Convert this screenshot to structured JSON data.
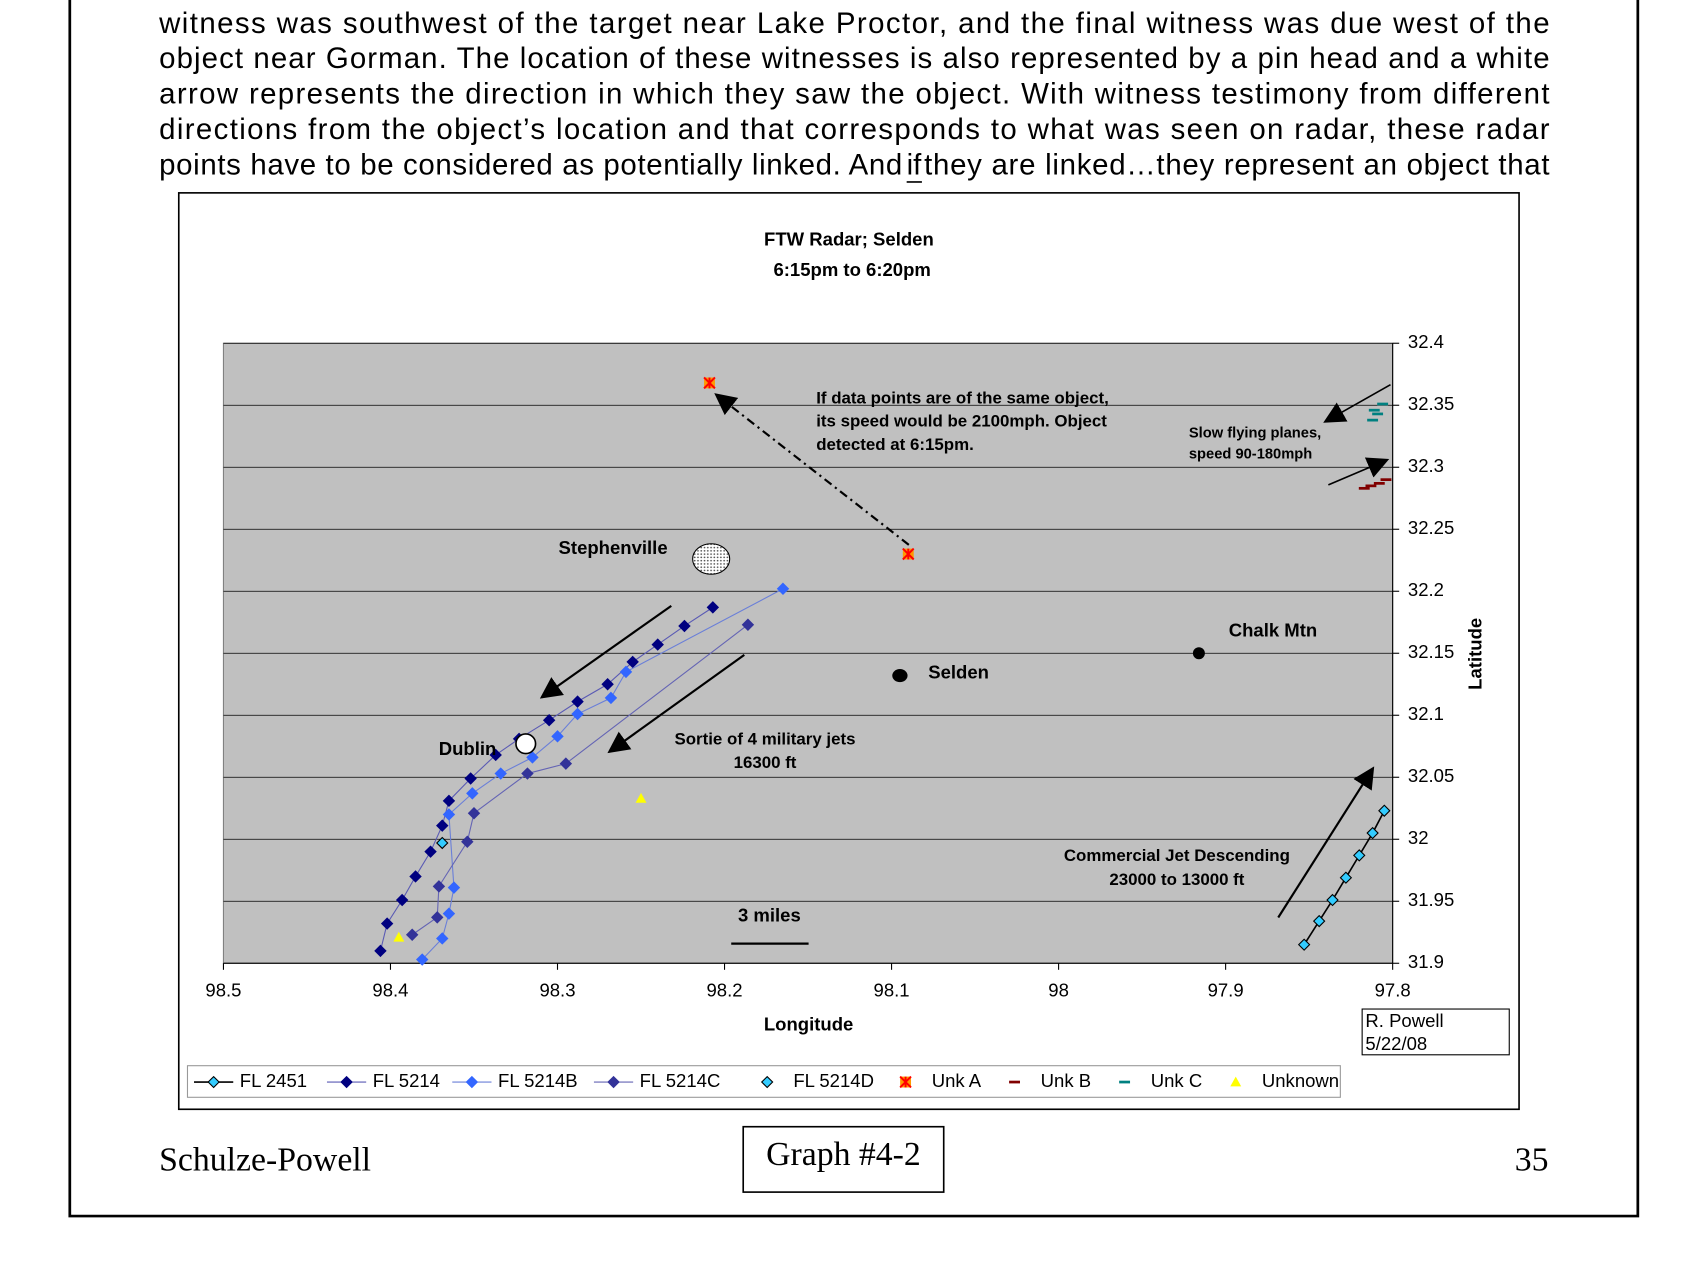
{
  "text": {
    "lines": [
      "witness was southwest of the target near Lake Proctor, and the final witness was due west of the",
      "object near Gorman. The location of these witnesses is also represented by a pin head and a white",
      "arrow represents the direction in which they saw the object. With witness testimony from different",
      "directions from the object’s location and that corresponds to what was seen on radar, these radar"
    ],
    "last_line": [
      "points have to be considered as potentially linked. And ",
      "if",
      " they are linked…they represent an object that"
    ]
  },
  "chart_data": {
    "type": "scatter",
    "title": [
      "FTW Radar; Selden",
      "6:15pm to 6:20pm"
    ],
    "x_label": "Longitude",
    "y_label": "Latitude",
    "xlim": [
      98.5,
      97.8
    ],
    "xticks": [
      98.5,
      98.4,
      98.3,
      98.2,
      98.1,
      98,
      97.9,
      97.8
    ],
    "ylim": [
      31.9,
      32.4
    ],
    "yticks": [
      31.9,
      31.95,
      32,
      32.05,
      32.1,
      32.15,
      32.2,
      32.25,
      32.3,
      32.35,
      32.4
    ],
    "grid": true,
    "series": [
      {
        "name": "FL 2451",
        "color": "#33ccff",
        "line_color": "#000000",
        "marker": "diamond",
        "line": true,
        "x": [
          97.853,
          97.844,
          97.836,
          97.828,
          97.82,
          97.812,
          97.805
        ],
        "values": [
          31.915,
          31.934,
          31.951,
          31.969,
          31.987,
          32.005,
          32.023
        ]
      },
      {
        "name": "FL 5214",
        "color": "#000080",
        "line_color": "#5a5ab4",
        "marker": "diamond",
        "line": true,
        "x": [
          98.406,
          98.402,
          98.393,
          98.385,
          98.376,
          98.369,
          98.365,
          98.352,
          98.337,
          98.323,
          98.305,
          98.288,
          98.27,
          98.255,
          98.24,
          98.224,
          98.207
        ],
        "values": [
          31.91,
          31.932,
          31.951,
          31.97,
          31.99,
          32.011,
          32.031,
          32.049,
          32.068,
          32.081,
          32.096,
          32.111,
          32.125,
          32.143,
          32.157,
          32.172,
          32.187
        ]
      },
      {
        "name": "FL 5214B",
        "color": "#3366ff",
        "line_color": "#6a7fd8",
        "marker": "diamond",
        "line": true,
        "x": [
          98.381,
          98.369,
          98.365,
          98.362,
          98.365,
          98.351,
          98.334,
          98.315,
          98.3,
          98.288,
          98.268,
          98.259,
          98.165
        ],
        "values": [
          31.903,
          31.92,
          31.94,
          31.961,
          32.02,
          32.037,
          32.053,
          32.066,
          32.083,
          32.101,
          32.114,
          32.135,
          32.202
        ]
      },
      {
        "name": "FL 5214C",
        "color": "#333399",
        "line_color": "#6464b4",
        "marker": "diamond",
        "line": true,
        "x": [
          98.387,
          98.372,
          98.371,
          98.354,
          98.35,
          98.318,
          98.295,
          98.186
        ],
        "values": [
          31.923,
          31.937,
          31.962,
          31.998,
          32.021,
          32.053,
          32.061,
          32.173
        ]
      },
      {
        "name": "FL 5214D",
        "color": "#33ccff",
        "marker": "diamond-dark",
        "line": false,
        "x": [
          98.369
        ],
        "values": [
          31.997
        ]
      },
      {
        "name": "Unk A",
        "color": "#ff9900",
        "marker": "asterisk",
        "line": false,
        "x": [
          98.209,
          98.09
        ],
        "values": [
          32.368,
          32.23
        ]
      },
      {
        "name": "Unk B",
        "color": "#800000",
        "marker": "dash",
        "line": false,
        "x": [
          97.817,
          97.813,
          97.808,
          97.804
        ],
        "values": [
          32.283,
          32.285,
          32.287,
          32.29
        ]
      },
      {
        "name": "Unk C",
        "color": "#008080",
        "marker": "dash",
        "line": false,
        "x": [
          97.812,
          97.809,
          97.811,
          97.806
        ],
        "values": [
          32.338,
          32.343,
          32.346,
          32.351
        ]
      },
      {
        "name": "Unknown",
        "color": "#ffff00",
        "marker": "triangle",
        "line": false,
        "x": [
          98.25,
          98.395
        ],
        "values": [
          32.033,
          31.921
        ]
      }
    ],
    "places": [
      {
        "label": "Stephenville",
        "lon": 98.208,
        "lat": 32.226
      },
      {
        "label": "Dublin",
        "lon": 98.319,
        "lat": 32.077
      },
      {
        "label": "Selden",
        "lon": 98.095,
        "lat": 32.132
      },
      {
        "label": "Chalk Mtn",
        "lon": 97.916,
        "lat": 32.15
      }
    ],
    "annotations": [
      [
        "If data points are of the same object,",
        "its speed would be 2100mph. Object",
        "detected at 6:15pm."
      ],
      [
        "Slow flying planes,",
        "speed 90-180mph"
      ],
      [
        "Sortie of 4 military jets",
        "16300 ft"
      ],
      [
        "Commercial Jet Descending",
        "23000 to 13000 ft"
      ],
      [
        "3 miles"
      ]
    ],
    "credit": [
      "R. Powell",
      "5/22/08"
    ]
  },
  "footer": {
    "left": "Schulze-Powell",
    "center": "Graph #4-2",
    "right": "35"
  }
}
